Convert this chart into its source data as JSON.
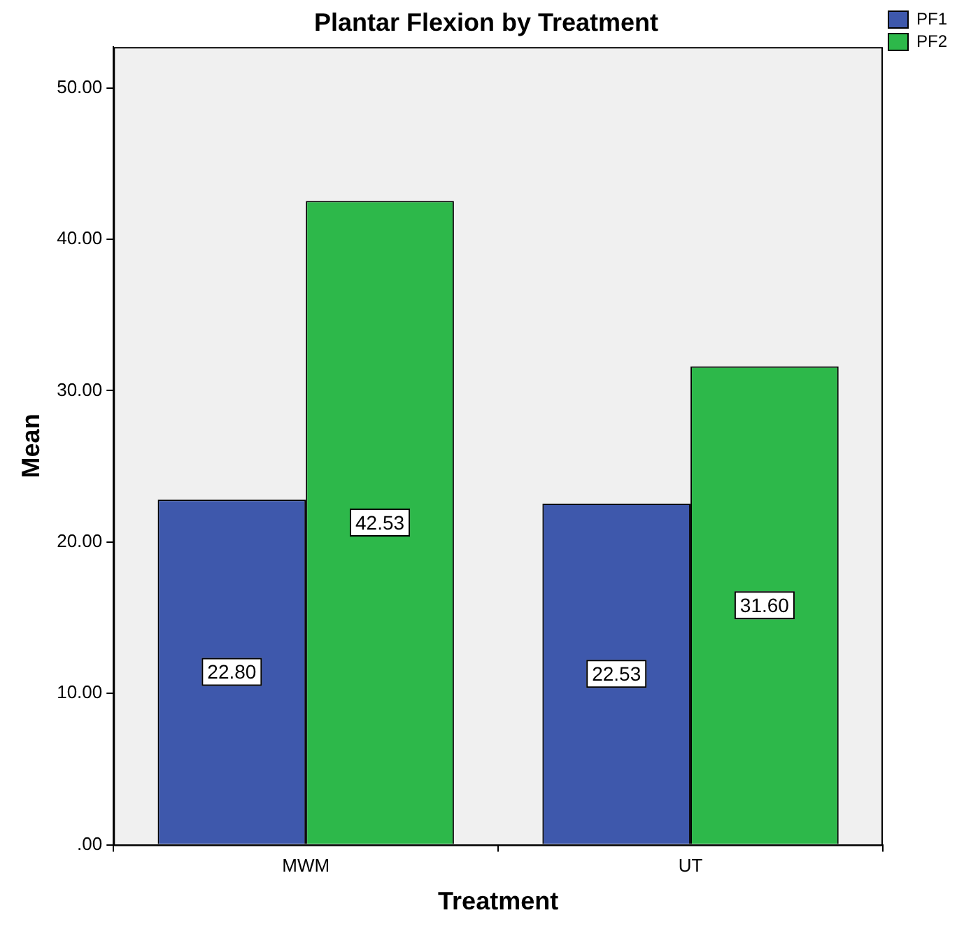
{
  "chart_data": {
    "type": "bar",
    "title": "Plantar Flexion by Treatment",
    "xlabel": "Treatment",
    "ylabel": "Mean",
    "categories": [
      "MWM",
      "UT"
    ],
    "series": [
      {
        "name": "PF1",
        "color": "#3e58ac",
        "values": [
          22.8,
          22.53
        ],
        "value_labels": [
          "22.80",
          "22.53"
        ]
      },
      {
        "name": "PF2",
        "color": "#2db84a",
        "values": [
          42.53,
          31.6
        ],
        "value_labels": [
          "42.53",
          "31.60"
        ]
      }
    ],
    "ylim": [
      0,
      52.7
    ],
    "yticks": [
      {
        "value": 0,
        "label": ".00"
      },
      {
        "value": 10,
        "label": "10.00"
      },
      {
        "value": 20,
        "label": "20.00"
      },
      {
        "value": 30,
        "label": "30.00"
      },
      {
        "value": 40,
        "label": "40.00"
      },
      {
        "value": 50,
        "label": "50.00"
      }
    ],
    "grid": false,
    "legend": "top right"
  }
}
